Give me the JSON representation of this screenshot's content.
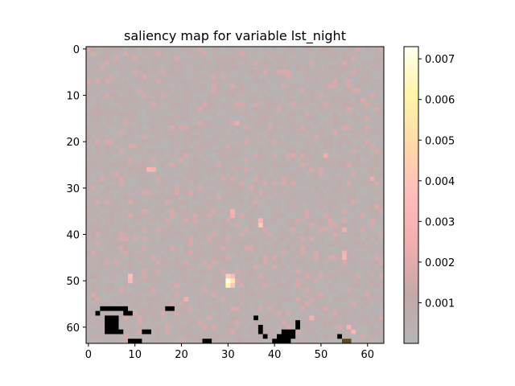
{
  "chart_data": {
    "type": "heatmap",
    "title": "saliency map for variable lst_night",
    "grid_size": [
      64,
      64
    ],
    "x_ticks": [
      0,
      10,
      20,
      30,
      40,
      50,
      60
    ],
    "y_ticks": [
      0,
      10,
      20,
      30,
      40,
      50,
      60
    ],
    "colorbar": {
      "min": 0.0,
      "max": 0.0073,
      "ticks": [
        0.001,
        0.002,
        0.003,
        0.004,
        0.005,
        0.006,
        0.007
      ],
      "tick_labels": [
        "0.001",
        "0.002",
        "0.003",
        "0.004",
        "0.005",
        "0.006",
        "0.007"
      ],
      "colormap": [
        "#b5b5b5",
        "#c4a8a8",
        "#f2aeae",
        "#ffbcbc",
        "#ffd9a8",
        "#fff4a8",
        "#ffffee"
      ]
    },
    "background_value": 0.0006,
    "hotspots": [
      {
        "row": 50,
        "col": 30,
        "value": 0.0073
      },
      {
        "row": 51,
        "col": 30,
        "value": 0.0062
      },
      {
        "row": 50,
        "col": 31,
        "value": 0.0055
      },
      {
        "row": 49,
        "col": 30,
        "value": 0.0045
      },
      {
        "row": 51,
        "col": 31,
        "value": 0.004
      },
      {
        "row": 49,
        "col": 31,
        "value": 0.0035
      },
      {
        "row": 38,
        "col": 37,
        "value": 0.0042
      },
      {
        "row": 37,
        "col": 37,
        "value": 0.003
      },
      {
        "row": 49,
        "col": 9,
        "value": 0.0038
      },
      {
        "row": 50,
        "col": 9,
        "value": 0.0032
      },
      {
        "row": 26,
        "col": 13,
        "value": 0.003
      },
      {
        "row": 26,
        "col": 14,
        "value": 0.0028
      },
      {
        "row": 35,
        "col": 31,
        "value": 0.0028
      },
      {
        "row": 36,
        "col": 31,
        "value": 0.0025
      },
      {
        "row": 45,
        "col": 55,
        "value": 0.003
      },
      {
        "row": 44,
        "col": 55,
        "value": 0.0027
      },
      {
        "row": 60,
        "col": 56,
        "value": 0.0028
      },
      {
        "row": 61,
        "col": 57,
        "value": 0.003
      },
      {
        "row": 58,
        "col": 48,
        "value": 0.0026
      },
      {
        "row": 57,
        "col": 2,
        "value": 0.0026
      },
      {
        "row": 54,
        "col": 21,
        "value": 0.0025
      },
      {
        "row": 39,
        "col": 55,
        "value": 0.0024
      },
      {
        "row": 23,
        "col": 51,
        "value": 0.0024
      },
      {
        "row": 16,
        "col": 32,
        "value": 0.0022
      },
      {
        "row": 28,
        "col": 61,
        "value": 0.0022
      }
    ],
    "masked_cells": [
      [
        56,
        3
      ],
      [
        56,
        4
      ],
      [
        56,
        5
      ],
      [
        56,
        6
      ],
      [
        56,
        7
      ],
      [
        56,
        8
      ],
      [
        57,
        2
      ],
      [
        57,
        8
      ],
      [
        57,
        9
      ],
      [
        58,
        4
      ],
      [
        58,
        5
      ],
      [
        58,
        6
      ],
      [
        59,
        4
      ],
      [
        59,
        5
      ],
      [
        59,
        6
      ],
      [
        60,
        4
      ],
      [
        60,
        5
      ],
      [
        60,
        6
      ],
      [
        61,
        4
      ],
      [
        61,
        5
      ],
      [
        61,
        6
      ],
      [
        61,
        7
      ],
      [
        63,
        9
      ],
      [
        63,
        10
      ],
      [
        63,
        11
      ],
      [
        61,
        12
      ],
      [
        61,
        13
      ],
      [
        56,
        17
      ],
      [
        56,
        18
      ],
      [
        63,
        25
      ],
      [
        63,
        26
      ],
      [
        58,
        36
      ],
      [
        60,
        37
      ],
      [
        61,
        37
      ],
      [
        62,
        38
      ],
      [
        63,
        40
      ],
      [
        63,
        41
      ],
      [
        63,
        42
      ],
      [
        63,
        43
      ],
      [
        61,
        42
      ],
      [
        61,
        43
      ],
      [
        61,
        44
      ],
      [
        62,
        41
      ],
      [
        62,
        42
      ],
      [
        62,
        43
      ],
      [
        62,
        44
      ],
      [
        59,
        45
      ],
      [
        60,
        45
      ],
      [
        62,
        54
      ],
      [
        63,
        55
      ],
      [
        63,
        56
      ]
    ],
    "masked_color": "#000000",
    "masked_olive_cells": [
      [
        63,
        55
      ],
      [
        63,
        56
      ]
    ],
    "masked_olive_color": "#5a4a1e"
  }
}
